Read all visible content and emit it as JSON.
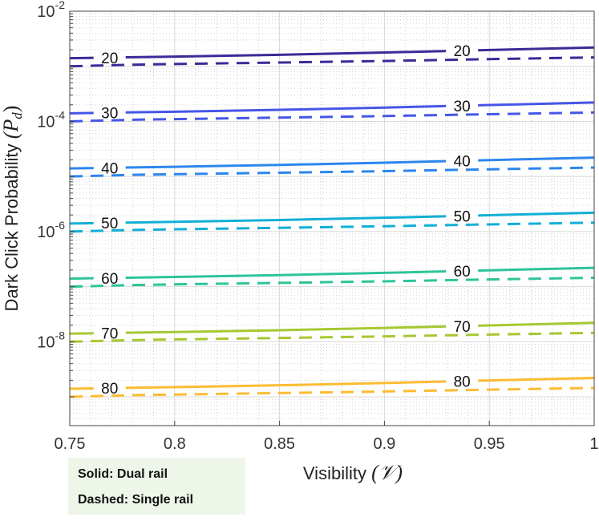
{
  "chart_data": {
    "type": "line",
    "xlabel": "Visibility",
    "xlabel_symbol": "(𝒱)",
    "ylabel": "Dark Click Probability",
    "ylabel_symbol": "(P",
    "ylabel_sub": "d",
    "xlim": [
      0.75,
      1
    ],
    "ylim": [
      3e-10,
      0.01
    ],
    "yscale": "log",
    "grid": true,
    "x_ticks": [
      "0.75",
      "0.8",
      "0.85",
      "0.9",
      "0.95",
      "1"
    ],
    "y_ticks": [
      {
        "base": "10",
        "exp": "-2"
      },
      {
        "base": "10",
        "exp": "-4"
      },
      {
        "base": "10",
        "exp": "-6"
      },
      {
        "base": "10",
        "exp": "-8"
      }
    ],
    "x": [
      0.75,
      0.78,
      0.8,
      0.85,
      0.9,
      0.95,
      1.0
    ],
    "series": [
      {
        "level": "20",
        "color": "#3b2a98",
        "solid": [
          0.0014,
          0.00146,
          0.0015,
          0.00162,
          0.00178,
          0.00198,
          0.0022
        ],
        "dashed": [
          0.001,
          0.00107,
          0.0011,
          0.00117,
          0.00125,
          0.00135,
          0.00145
        ]
      },
      {
        "level": "30",
        "color": "#4656e6",
        "solid": [
          0.00014,
          0.000146,
          0.00015,
          0.000162,
          0.000178,
          0.000198,
          0.00022
        ],
        "dashed": [
          0.0001,
          0.000107,
          0.00011,
          0.000117,
          0.000125,
          0.000135,
          0.000145
        ]
      },
      {
        "level": "40",
        "color": "#2c86ee",
        "solid": [
          1.4e-05,
          1.46e-05,
          1.5e-05,
          1.62e-05,
          1.78e-05,
          1.98e-05,
          2.2e-05
        ],
        "dashed": [
          1e-05,
          1.07e-05,
          1.1e-05,
          1.17e-05,
          1.25e-05,
          1.35e-05,
          1.45e-05
        ]
      },
      {
        "level": "50",
        "color": "#12afd6",
        "solid": [
          1.4e-06,
          1.46e-06,
          1.5e-06,
          1.62e-06,
          1.78e-06,
          1.98e-06,
          2.2e-06
        ],
        "dashed": [
          1e-06,
          1.07e-06,
          1.1e-06,
          1.17e-06,
          1.25e-06,
          1.35e-06,
          1.45e-06
        ]
      },
      {
        "level": "60",
        "color": "#2ec49a",
        "solid": [
          1.4e-07,
          1.46e-07,
          1.5e-07,
          1.62e-07,
          1.78e-07,
          1.98e-07,
          2.2e-07
        ],
        "dashed": [
          1e-07,
          1.07e-07,
          1.1e-07,
          1.17e-07,
          1.25e-07,
          1.35e-07,
          1.45e-07
        ]
      },
      {
        "level": "70",
        "color": "#a6c832",
        "solid": [
          1.4e-08,
          1.46e-08,
          1.5e-08,
          1.62e-08,
          1.78e-08,
          1.98e-08,
          2.2e-08
        ],
        "dashed": [
          1e-08,
          1.07e-08,
          1.1e-08,
          1.17e-08,
          1.25e-08,
          1.35e-08,
          1.45e-08
        ]
      },
      {
        "level": "80",
        "color": "#fbbc32",
        "solid": [
          1.4e-09,
          1.46e-09,
          1.5e-09,
          1.62e-09,
          1.78e-09,
          1.98e-09,
          2.2e-09
        ],
        "dashed": [
          1e-09,
          1.07e-09,
          1.1e-09,
          1.17e-09,
          1.25e-09,
          1.35e-09,
          1.45e-09
        ]
      }
    ],
    "label_x": [
      0.769,
      0.937
    ],
    "legend": {
      "solid": "Solid: Dual rail",
      "dashed": "Dashed: Single rail",
      "placement": "bottom-left, below axes"
    }
  }
}
